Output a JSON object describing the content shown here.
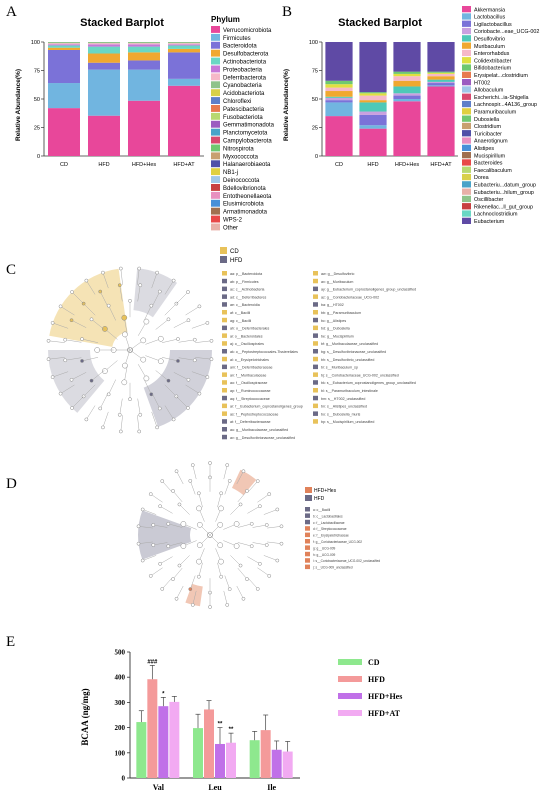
{
  "panels": {
    "A": {
      "letter": "A",
      "chart_data": {
        "type": "bar",
        "title": "Stacked Barplot",
        "ylabel": "Relative Abundance(%)",
        "ylim": [
          0,
          100
        ],
        "yticks": [
          0,
          25,
          50,
          75,
          100
        ],
        "categories": [
          "CD",
          "HFD",
          "HFD+Hes",
          "HFD+AT"
        ],
        "legend_title": "Phylum",
        "series": [
          {
            "name": "Verrucomicrobiota",
            "color": "#e8479a",
            "values": [
              42,
              35,
              48,
              61
            ]
          },
          {
            "name": "Firmicutes",
            "color": "#71b5e0",
            "values": [
              22,
              40,
              27,
              6
            ]
          },
          {
            "name": "Bacteroidota",
            "color": "#7b72d8",
            "values": [
              29,
              6,
              8,
              23
            ]
          },
          {
            "name": "Desulfobacterota",
            "color": "#f0a830",
            "values": [
              2,
              8,
              7,
              3
            ]
          },
          {
            "name": "Actinobacteriota",
            "color": "#6ad7c4",
            "values": [
              2,
              6,
              5,
              3
            ]
          },
          {
            "name": "Proteobacteria",
            "color": "#c678d8",
            "values": [
              1,
              2,
              2,
              1
            ]
          },
          {
            "name": "Deferribacterota",
            "color": "#f6b8c8",
            "values": [
              1,
              1,
              1,
              1
            ]
          },
          {
            "name": "Cyanobacteria",
            "color": "#8fc38a",
            "values": [
              1,
              1,
              1,
              1
            ]
          }
        ],
        "legend": [
          "Verrucomicrobiota",
          "Firmicutes",
          "Bacteroidota",
          "Desulfobacterota",
          "Actinobacteriota",
          "Proteobacteria",
          "Deferribacterota",
          "Cyanobacteria",
          "Acidobacteriota",
          "Chloroflexi",
          "Patescibacteria",
          "Fusobacteriota",
          "Gemmatimonadota",
          "Planctomycetota",
          "Campylobacterota",
          "Nitrospirota",
          "Myxococcota",
          "Halanaerobiaeota",
          "NB1-j",
          "Deinococcota",
          "Bdellovibrionota",
          "Entotheonellaeota",
          "Elusimicrobiota",
          "Armatimonadota",
          "WPS-2",
          "Other"
        ],
        "legend_colors": [
          "#e8479a",
          "#71b5e0",
          "#7b72d8",
          "#f0a830",
          "#6ad7c4",
          "#c678d8",
          "#f6b8c8",
          "#8fc38a",
          "#d8d04a",
          "#5e7fc9",
          "#e87a4e",
          "#b8d870",
          "#9c5cc0",
          "#4aa3c8",
          "#d84a6e",
          "#70c870",
          "#c8a070",
          "#5050a8",
          "#e0d040",
          "#a0c8e8",
          "#c84040",
          "#e890c0",
          "#4890d8",
          "#a07050",
          "#e84848",
          "#e8b0a8"
        ]
      }
    },
    "B": {
      "letter": "B",
      "chart_data": {
        "type": "bar",
        "title": "Stacked Barplot",
        "ylabel": "Relative Abundance(%)",
        "ylim": [
          0,
          100
        ],
        "yticks": [
          0,
          25,
          50,
          75,
          100
        ],
        "categories": [
          "CD",
          "HFD",
          "HFD+Hes",
          "HFD+AT"
        ],
        "series": [
          {
            "name": "Akkermansia",
            "color": "#e8479a",
            "values": [
              35,
              24,
              48,
              61
            ]
          },
          {
            "name": "Lactobacillus",
            "color": "#71b5e0",
            "values": [
              12,
              3,
              2,
              1
            ]
          },
          {
            "name": "Ligilactobacillus",
            "color": "#7b72d8",
            "values": [
              2,
              9,
              3,
              2
            ]
          },
          {
            "name": "Coriobacte...eae_UCG-002",
            "color": "#c9a0e0",
            "values": [
              2,
              3,
              2,
              1
            ]
          },
          {
            "name": "Desulfovibrio",
            "color": "#4ec9b8",
            "values": [
              1,
              8,
              6,
              2
            ]
          },
          {
            "name": "Muribaculum",
            "color": "#f0a830",
            "values": [
              5,
              2,
              5,
              3
            ]
          },
          {
            "name": "Enterorhabdus",
            "color": "#f6b8c8",
            "values": [
              3,
              4,
              4,
              2
            ]
          },
          {
            "name": "Colidextribacter",
            "color": "#e0e040",
            "values": [
              3,
              2,
              2,
              1
            ]
          },
          {
            "name": "Bifidobacterium",
            "color": "#6fc870",
            "values": [
              3,
              1,
              2,
              1
            ]
          },
          {
            "name": "Other",
            "color": "#5f4aa5",
            "values": [
              34,
              44,
              26,
              26
            ]
          }
        ],
        "legend": [
          "Akkermansia",
          "Lactobacillus",
          "Ligilactobacillus",
          "Coriobacte...eae_UCG-002",
          "Desulfovibrio",
          "Muribaculum",
          "Enterorhabdus",
          "Colidextribacter",
          "Bifidobacterium",
          "Erysipelat...clostridium",
          "HT002",
          "Allobaculum",
          "Escherichi...ia-Shigella",
          "Lachnospir...4A136_group",
          "Paramuribaculum",
          "Dubosiella",
          "Clostridium",
          "Turicibacter",
          "Anaerotignum",
          "Alistipes",
          "Mucispirillum",
          "Bacteroides",
          "Faecalibaculum",
          "Dorea",
          "Eubacteriu...datum_group",
          "Eubacteriu...hilum_group",
          "Oscillibacter",
          "Rikenellac...ll_gut_group",
          "Lachnoclostridium",
          "Eubacterium"
        ],
        "legend_colors": [
          "#e8479a",
          "#71b5e0",
          "#7b72d8",
          "#c9a0e0",
          "#4ec9b8",
          "#f0a830",
          "#f6b8c8",
          "#e0e040",
          "#6fc870",
          "#e87a4e",
          "#9c5cc0",
          "#a0c8e8",
          "#d84a6e",
          "#5e7fc9",
          "#e0d040",
          "#70c870",
          "#c8a070",
          "#5050a8",
          "#e890c0",
          "#4890d8",
          "#a07050",
          "#e84848",
          "#b8d870",
          "#d8d04a",
          "#4aa3c8",
          "#e8b0a8",
          "#8fc38a",
          "#c84040",
          "#6ad7c4",
          "#5f4aa5"
        ]
      }
    },
    "C": {
      "letter": "C",
      "groups": [
        "CD",
        "HFD"
      ],
      "group_colors": [
        "#e8c25a",
        "#6b6a86"
      ],
      "legend_left": [
        "aa: p__Bacteroidota",
        "ab: p__Firmicutes",
        "ac: c__Actinobacteria",
        "ad: c__Deferribacteres",
        "ae: c__Bacteroidia",
        "af: c__Bacilli",
        "ag: c__Bacilli",
        "ah: o__Deferribacterales",
        "ai: o__Bacteroidales",
        "aj: o__Oscillospirales",
        "ak: o__Peptostreptococcales-Tissierellales",
        "al: o__Erysipelotrichales",
        "am: f__Deferribacteraceae",
        "an: f__Muribaculaceae",
        "ao: f__Oscillospiraceae",
        "ap: f__Ruminococcaceae",
        "aq: f__Streptococcaceae",
        "ar: f__Eubacterium_coprostanoligenes_group",
        "as: f__Peptostreptococcaceae",
        "at: f__Deferribacteraceae",
        "au: g__Muribaculaceae_unclassified",
        "av: g__Desulfovibrionaceae_unclassified"
      ],
      "legend_right": [
        "aw: g__Desulfovibrio",
        "ax: g__Muribaculum",
        "ay: g__Eubacterium_coprostanoligenes_group_unclassified",
        "az: g__Coriobacteriaceae_UCG-002",
        "ba: g__HT002",
        "bb: g__Paramuribaculum",
        "bc: g__Alistipes",
        "bd: g__Dubosiella",
        "be: g__Mucispirillum",
        "bf: g__Muribaculaceae_unclassified",
        "bg: s__Desulfovibrionaceae_unclassified",
        "bh: s__Desulfovibrio_unclassified",
        "bi: s__Muribaculum_sp",
        "bj: s__Coriobacteriaceae_UCG-002_unclassified",
        "bk: s__Eubacterium_coprostanoligenes_group_unclassified",
        "bl: s__Paramuribaculum_intestinale",
        "bm: s__HT002_unclassified",
        "bn: s__Alistipes_unclassified",
        "bo: s__Dubosiella_muris",
        "bp: s__Mucispirillum_unclassified"
      ]
    },
    "D": {
      "letter": "D",
      "groups": [
        "HFD+Hes",
        "HFD"
      ],
      "group_colors": [
        "#e0825a",
        "#6b6a86"
      ],
      "legend": [
        "a: o__Bacilli",
        "b: c__Lactobacillales",
        "c: f__Lactobacillaceae",
        "d: f__Streptococcaceae",
        "e: f__Erysipelotrichaceae",
        "f: g__Coriobacteriaceae_UCG-002",
        "g: g__UCG-009",
        "h: g__UCG-009",
        "i: s__Coriobacteriaceae_UCG-002_unclassified",
        "j: s__UCG-009_unclassified"
      ]
    },
    "E": {
      "letter": "E",
      "chart_data": {
        "type": "bar",
        "ylabel": "BCAA (ng/mg)",
        "ylim": [
          0,
          500
        ],
        "yticks": [
          0,
          100,
          200,
          300,
          400,
          500
        ],
        "categories": [
          "Val",
          "Leu",
          "Ile"
        ],
        "series": [
          {
            "name": "CD",
            "color": "#8ee88e",
            "values": [
              222,
              198,
              150
            ],
            "errors": [
              45,
              55,
              35
            ]
          },
          {
            "name": "HFD",
            "color": "#f49a9a",
            "values": [
              392,
              272,
              190
            ],
            "errors": [
              55,
              35,
              60
            ]
          },
          {
            "name": "HFD+Hes",
            "color": "#c070e8",
            "values": [
              285,
              135,
              112
            ],
            "errors": [
              35,
              65,
              35
            ]
          },
          {
            "name": "HFD+AT",
            "color": "#f2aaf2",
            "values": [
              302,
              140,
              105
            ],
            "errors": [
              22,
              38,
              40
            ]
          }
        ],
        "annotations": [
          {
            "category": "Val",
            "series": "HFD",
            "text": "###"
          },
          {
            "category": "Val",
            "series": "HFD+Hes",
            "text": "*"
          },
          {
            "category": "Leu",
            "series": "HFD+Hes",
            "text": "**"
          },
          {
            "category": "Leu",
            "series": "HFD+AT",
            "text": "**"
          }
        ]
      }
    }
  }
}
